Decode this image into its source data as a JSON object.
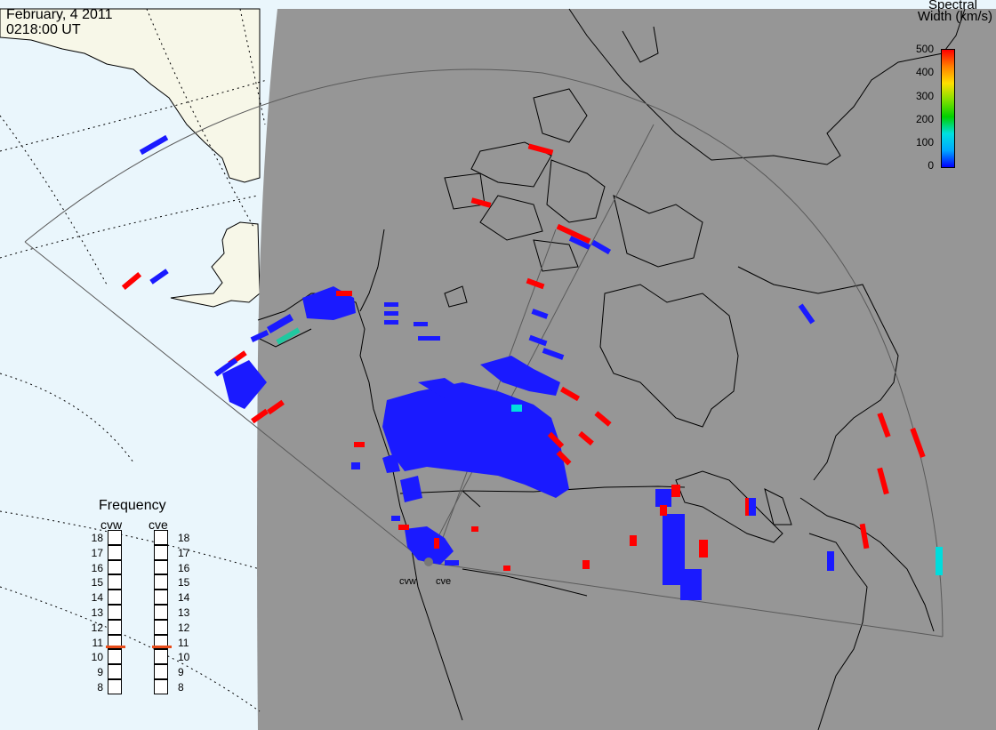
{
  "header": {
    "date": "February, 4 2011",
    "time": "0218:00 UT"
  },
  "colorbar": {
    "title_line1": "Spectral",
    "title_line2": "Width (km/s)",
    "ticks": [
      "500",
      "400",
      "300",
      "200",
      "100",
      "0"
    ],
    "stops": [
      "#0000ff",
      "#00a8ff",
      "#00e0e0",
      "#00d000",
      "#80e000",
      "#ffe000",
      "#ff8000",
      "#ff0000"
    ]
  },
  "frequency_panel": {
    "title": "Frequency",
    "radars": [
      {
        "name": "cvw",
        "frequency_mhz": 10.7
      },
      {
        "name": "cve",
        "frequency_mhz": 10.7
      }
    ],
    "ticks": [
      "18",
      "17",
      "16",
      "15",
      "14",
      "13",
      "12",
      "11",
      "10",
      "9",
      "8"
    ],
    "marker_color": "#e84c1a"
  },
  "stations": [
    {
      "name": "cvw"
    },
    {
      "name": "cve"
    }
  ],
  "map_colors": {
    "ocean": "#eaf6fc",
    "land_daylight": "#f7f7e8",
    "night": "#969696",
    "coastline": "#000000",
    "fov": "#5a5a5a"
  }
}
